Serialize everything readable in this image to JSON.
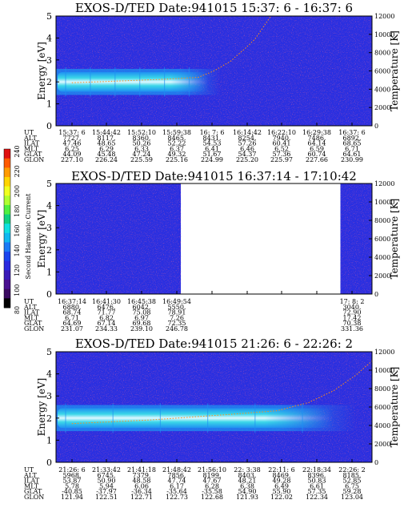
{
  "colors": {
    "background": "#2a2fe0",
    "band_core": "#dff8ff",
    "band_mid": "#3ad6e8",
    "band_edge": "#1f8ff2",
    "speckle": "#5a1a7a",
    "trace": "#ff8c1a"
  },
  "colorbar": {
    "label": "Second Harmonic Current",
    "ticks": [
      "240",
      "220",
      "200",
      "180",
      "160",
      "140",
      "120",
      "100",
      "80"
    ],
    "colors": [
      "#e01010",
      "#ff5a00",
      "#ff9a00",
      "#ffd400",
      "#f0ff20",
      "#b0ff30",
      "#50f040",
      "#10d080",
      "#10e0e0",
      "#10b8f0",
      "#1a7af5",
      "#1a44ee",
      "#2a2adf",
      "#3a1ab8",
      "#4a1090",
      "#3a0a60",
      "#000000"
    ]
  },
  "chart_data": [
    {
      "type": "heatmap",
      "title": "EXOS-D/TED   Date:941015  15:37: 6 - 16:37: 6",
      "ylabel": "Energy [eV]",
      "ylim": [
        0,
        5
      ],
      "yticks": [
        "0",
        "1",
        "2",
        "3",
        "4",
        "5"
      ],
      "y2label": "Temperature [K]",
      "y2lim": [
        0,
        12000
      ],
      "y2ticks": [
        "0",
        "2000",
        "4000",
        "6000",
        "8000",
        "10000",
        "12000"
      ],
      "ephemeris": {
        "labels": [
          "UT",
          "ALT",
          "ILAT",
          "MLT",
          "GLAT",
          "GLON"
        ],
        "rows": [
          [
            "15:37: 6",
            "15:44:42",
            "15:52:10",
            "15:59:38",
            "16: 7: 6",
            "16:14:42",
            "16:22:10",
            "16:29:38",
            "16:37: 6"
          ],
          [
            "7727.",
            "8117.",
            "8360.",
            "8465.",
            "8431.",
            "8254.",
            "7940.",
            "7486.",
            "6892."
          ],
          [
            "47.46",
            "48.65",
            "50.26",
            "52.22",
            "54.53",
            "57.26",
            "60.41",
            "64.14",
            "68.65"
          ],
          [
            "6.25",
            "6.29",
            "6.33",
            "6.37",
            "6.41",
            "6.46",
            "6.52",
            "6.59",
            "6.71"
          ],
          [
            "44.09",
            "45.48",
            "47.24",
            "49.32",
            "51.67",
            "54.37",
            "57.36",
            "60.74",
            "64.61"
          ],
          [
            "227.10",
            "226.24",
            "225.59",
            "225.16",
            "224.99",
            "225.20",
            "225.97",
            "227.66",
            "230.99"
          ]
        ]
      },
      "data_spans": [
        [
          0,
          1
        ]
      ],
      "band": {
        "center_ev": 2.0,
        "half_width_ev": 0.45,
        "end_fraction": 0.52
      },
      "temperature_trace": [
        [
          0.05,
          4700
        ],
        [
          0.2,
          4900
        ],
        [
          0.35,
          5100
        ],
        [
          0.45,
          5300
        ],
        [
          0.5,
          6000
        ],
        [
          0.55,
          7000
        ],
        [
          0.6,
          8500
        ],
        [
          0.63,
          9500
        ],
        [
          0.66,
          11000
        ],
        [
          0.68,
          12000
        ]
      ]
    },
    {
      "type": "heatmap",
      "title": "EXOS-D/TED   Date:941015  16:37:14 - 17:10:42",
      "ylabel": "Energy [eV]",
      "ylim": [
        0,
        5
      ],
      "yticks": [
        "0",
        "1",
        "2",
        "3",
        "4",
        "5"
      ],
      "y2label": "Temperature [K]",
      "y2lim": [
        0,
        12000
      ],
      "y2ticks": [
        "0",
        "2000",
        "4000",
        "6000",
        "8000",
        "10000",
        "12000"
      ],
      "ephemeris": {
        "labels": [
          "UT",
          "ALT",
          "ILAT",
          "MLT",
          "GLAT",
          "GLON"
        ],
        "rows": [
          [
            "16:37:14",
            "16:41:30",
            "16:45:38",
            "16:49:54",
            "",
            "",
            "",
            "",
            "17: 8: 2"
          ],
          [
            "6880.",
            "6476.",
            "6042.",
            "5550.",
            "",
            "",
            "",
            "",
            "3040."
          ],
          [
            "68.74",
            "71.77",
            "75.08",
            "78.91",
            "",
            "",
            "",
            "",
            "72.90"
          ],
          [
            "6.71",
            "6.82",
            "6.97",
            "7.26",
            "",
            "",
            "",
            "",
            "17.42"
          ],
          [
            "64.69",
            "67.14",
            "69.68",
            "72.35",
            "",
            "",
            "",
            "",
            "70.38"
          ],
          [
            "231.07",
            "234.33",
            "239.10",
            "246.78",
            "",
            "",
            "",
            "",
            "331.36"
          ]
        ]
      },
      "data_spans": [
        [
          0,
          0.395
        ],
        [
          0.9,
          1
        ]
      ],
      "band": null,
      "temperature_trace": []
    },
    {
      "type": "heatmap",
      "title": "EXOS-D/TED   Date:941015  21:26: 6 - 22:26: 2",
      "ylabel": "Energy [eV]",
      "ylim": [
        0,
        5
      ],
      "yticks": [
        "0",
        "1",
        "2",
        "3",
        "4",
        "5"
      ],
      "y2label": "Temperature [K]",
      "y2lim": [
        0,
        12000
      ],
      "y2ticks": [
        "0",
        "2000",
        "4000",
        "6000",
        "8000",
        "10000",
        "12000"
      ],
      "ephemeris": {
        "labels": [
          "UT",
          "ALT",
          "ILAT",
          "MLT",
          "GLAT",
          "GLON"
        ],
        "rows": [
          [
            "21:26: 6",
            "21:33:42",
            "21:41:18",
            "21:48:42",
            "21:56:10",
            "22: 3:38",
            "22:11: 6",
            "22:18:34",
            "22:26: 2"
          ],
          [
            "5968.",
            "6745.",
            "7379.",
            "7856.",
            "8199.",
            "8403.",
            "8469.",
            "8396.",
            "8185."
          ],
          [
            "53.87",
            "50.90",
            "48.58",
            "47.74",
            "47.67",
            "48.21",
            "49.28",
            "50.83",
            "52.85"
          ],
          [
            "5.78",
            "5.94",
            "6.06",
            "6.17",
            "6.28",
            "6.38",
            "6.49",
            "6.61",
            "6.75"
          ],
          [
            "-40.85",
            "-37.97",
            "-36.34",
            "-35.64",
            "-35.58",
            "54.90",
            "55.90",
            "57.35",
            "59.28"
          ],
          [
            "121.94",
            "122.51",
            "122.71",
            "122.73",
            "122.68",
            "121.93",
            "122.02",
            "122.34",
            "123.04"
          ]
        ]
      },
      "data_spans": [
        [
          0,
          1
        ]
      ],
      "band": {
        "center_ev": 2.0,
        "half_width_ev": 0.45,
        "end_fraction": 0.95
      },
      "temperature_trace": [
        [
          0.05,
          4200
        ],
        [
          0.3,
          4600
        ],
        [
          0.55,
          5200
        ],
        [
          0.7,
          5600
        ],
        [
          0.8,
          6500
        ],
        [
          0.88,
          7800
        ],
        [
          0.95,
          9500
        ],
        [
          1.0,
          11000
        ]
      ]
    }
  ]
}
